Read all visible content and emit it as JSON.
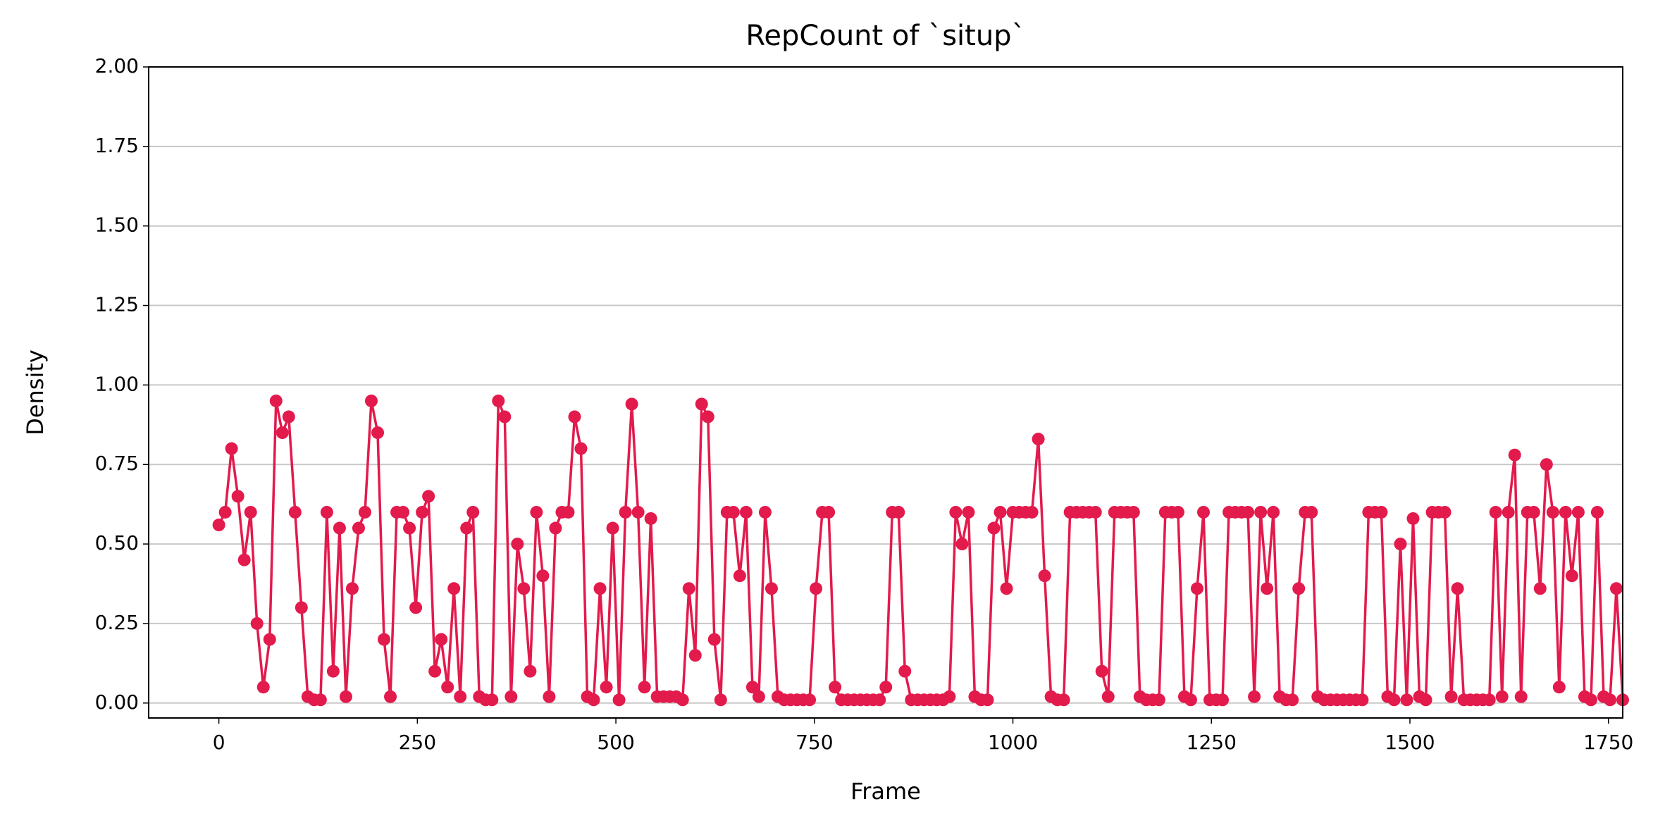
{
  "chart_data": {
    "type": "line",
    "title": "RepCount of `situp`",
    "xlabel": "Frame",
    "ylabel": "Density",
    "x": [
      0,
      8,
      16,
      24,
      32,
      40,
      48,
      56,
      64,
      72,
      80,
      88,
      96,
      104,
      112,
      120,
      128,
      136,
      144,
      152,
      160,
      168,
      176,
      184,
      192,
      200,
      208,
      216,
      224,
      232,
      240,
      248,
      256,
      264,
      272,
      280,
      288,
      296,
      304,
      312,
      320,
      328,
      336,
      344,
      352,
      360,
      368,
      376,
      384,
      392,
      400,
      408,
      416,
      424,
      432,
      440,
      448,
      456,
      464,
      472,
      480,
      488,
      496,
      504,
      512,
      520,
      528,
      536,
      544,
      552,
      560,
      568,
      576,
      584,
      592,
      600,
      608,
      616,
      624,
      632,
      640,
      648,
      656,
      664,
      672,
      680,
      688,
      696,
      704,
      712,
      720,
      728,
      736,
      744,
      752,
      760,
      768,
      776,
      784,
      792,
      800,
      808,
      816,
      824,
      832,
      840,
      848,
      856,
      864,
      872,
      880,
      888,
      896,
      904,
      912,
      920,
      928,
      936,
      944,
      952,
      960,
      968,
      976,
      984,
      992,
      1000,
      1008,
      1016,
      1024,
      1032,
      1040,
      1048,
      1056,
      1064,
      1072,
      1080,
      1088,
      1096,
      1104,
      1112,
      1120,
      1128,
      1136,
      1144,
      1152,
      1160,
      1168,
      1176,
      1184,
      1192,
      1200,
      1208,
      1216,
      1224,
      1232,
      1240,
      1248,
      1256,
      1264,
      1272,
      1280,
      1288,
      1296,
      1304,
      1312,
      1320,
      1328,
      1336,
      1344,
      1352,
      1360,
      1368,
      1376,
      1384,
      1392,
      1400,
      1408,
      1416,
      1424,
      1432,
      1440,
      1448,
      1456,
      1464,
      1472,
      1480,
      1488,
      1496,
      1504,
      1512,
      1520,
      1528,
      1536,
      1544,
      1552,
      1560,
      1568,
      1576,
      1584,
      1592,
      1600,
      1608,
      1616,
      1624,
      1632,
      1640,
      1648,
      1656,
      1664,
      1672,
      1680,
      1688,
      1696,
      1704,
      1712,
      1720,
      1728,
      1736,
      1744,
      1752,
      1760,
      1768
    ],
    "series": [
      {
        "name": "situp",
        "color": "#e31a4c",
        "values": [
          0.56,
          0.6,
          0.8,
          0.65,
          0.45,
          0.6,
          0.25,
          0.05,
          0.2,
          0.95,
          0.85,
          0.9,
          0.6,
          0.3,
          0.02,
          0.01,
          0.01,
          0.6,
          0.1,
          0.55,
          0.02,
          0.36,
          0.55,
          0.6,
          0.95,
          0.85,
          0.2,
          0.02,
          0.6,
          0.6,
          0.55,
          0.3,
          0.6,
          0.65,
          0.1,
          0.2,
          0.05,
          0.36,
          0.02,
          0.55,
          0.6,
          0.02,
          0.01,
          0.01,
          0.95,
          0.9,
          0.02,
          0.5,
          0.36,
          0.1,
          0.6,
          0.4,
          0.02,
          0.55,
          0.6,
          0.6,
          0.9,
          0.8,
          0.02,
          0.01,
          0.36,
          0.05,
          0.55,
          0.01,
          0.6,
          0.94,
          0.6,
          0.05,
          0.58,
          0.02,
          0.02,
          0.02,
          0.02,
          0.01,
          0.36,
          0.15,
          0.94,
          0.9,
          0.2,
          0.01,
          0.6,
          0.6,
          0.4,
          0.6,
          0.05,
          0.02,
          0.6,
          0.36,
          0.02,
          0.01,
          0.01,
          0.01,
          0.01,
          0.01,
          0.36,
          0.6,
          0.6,
          0.05,
          0.01,
          0.01,
          0.01,
          0.01,
          0.01,
          0.01,
          0.01,
          0.05,
          0.6,
          0.6,
          0.1,
          0.01,
          0.01,
          0.01,
          0.01,
          0.01,
          0.01,
          0.02,
          0.6,
          0.5,
          0.6,
          0.02,
          0.01,
          0.01,
          0.55,
          0.6,
          0.36,
          0.6,
          0.6,
          0.6,
          0.6,
          0.83,
          0.4,
          0.02,
          0.01,
          0.01,
          0.6,
          0.6,
          0.6,
          0.6,
          0.6,
          0.1,
          0.02,
          0.6,
          0.6,
          0.6,
          0.6,
          0.02,
          0.01,
          0.01,
          0.01,
          0.6,
          0.6,
          0.6,
          0.02,
          0.01,
          0.36,
          0.6,
          0.01,
          0.01,
          0.01,
          0.6,
          0.6,
          0.6,
          0.6,
          0.02,
          0.6,
          0.36,
          0.6,
          0.02,
          0.01,
          0.01,
          0.36,
          0.6,
          0.6,
          0.02,
          0.01,
          0.01,
          0.01,
          0.01,
          0.01,
          0.01,
          0.01,
          0.6,
          0.6,
          0.6,
          0.02,
          0.01,
          0.5,
          0.01,
          0.58,
          0.02,
          0.01,
          0.6,
          0.6,
          0.6,
          0.02,
          0.36,
          0.01,
          0.01,
          0.01,
          0.01,
          0.01,
          0.6,
          0.02,
          0.6,
          0.78,
          0.02,
          0.6,
          0.6,
          0.36,
          0.75,
          0.6,
          0.05,
          0.6,
          0.4,
          0.6,
          0.02,
          0.01,
          0.6,
          0.02,
          0.01,
          0.36,
          0.01
        ]
      }
    ],
    "xlim": [
      -88.4,
      1768
    ],
    "ylim": [
      -0.047,
      2.0
    ],
    "xticks": [
      0,
      250,
      500,
      750,
      1000,
      1250,
      1500,
      1750
    ],
    "yticks": [
      {
        "value": 0,
        "label": "0.00"
      },
      {
        "value": 0.25,
        "label": "0.25"
      },
      {
        "value": 0.5,
        "label": "0.50"
      },
      {
        "value": 0.75,
        "label": "0.75"
      },
      {
        "value": 1,
        "label": "1.00"
      },
      {
        "value": 1.25,
        "label": "1.25"
      },
      {
        "value": 1.5,
        "label": "1.50"
      },
      {
        "value": 1.75,
        "label": "1.75"
      },
      {
        "value": 2,
        "label": "2.00"
      }
    ],
    "grid": "y"
  }
}
